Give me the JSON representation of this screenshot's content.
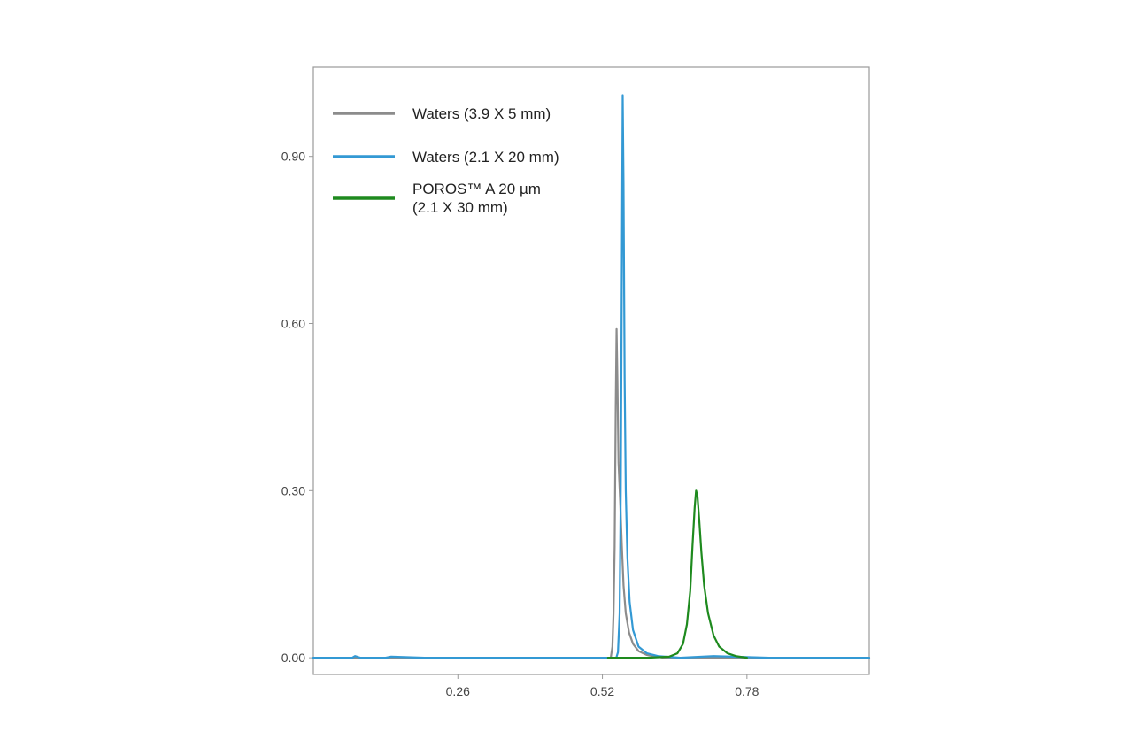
{
  "chart_data": {
    "type": "line",
    "title": "",
    "xlabel": "",
    "ylabel": "",
    "xlim": [
      0.0,
      1.0
    ],
    "ylim": [
      -0.03,
      1.06
    ],
    "x_ticks": [
      {
        "value": 0.26,
        "label": "0.26"
      },
      {
        "value": 0.52,
        "label": "0.52"
      },
      {
        "value": 0.78,
        "label": "0.78"
      }
    ],
    "y_ticks": [
      {
        "value": 0.0,
        "label": "0.00"
      },
      {
        "value": 0.3,
        "label": "0.30"
      },
      {
        "value": 0.6,
        "label": "0.60"
      },
      {
        "value": 0.9,
        "label": "0.90"
      }
    ],
    "grid": false,
    "legend_position": "top-left",
    "series": [
      {
        "name": "Waters (3.9 X 5 mm)",
        "color": "#8c8c8c",
        "points": [
          [
            0.0,
            0.0
          ],
          [
            0.52,
            0.0
          ],
          [
            0.535,
            0.0
          ],
          [
            0.538,
            0.02
          ],
          [
            0.54,
            0.08
          ],
          [
            0.542,
            0.2
          ],
          [
            0.544,
            0.45
          ],
          [
            0.5455,
            0.59
          ],
          [
            0.547,
            0.5
          ],
          [
            0.549,
            0.35
          ],
          [
            0.552,
            0.28
          ],
          [
            0.555,
            0.2
          ],
          [
            0.558,
            0.13
          ],
          [
            0.562,
            0.08
          ],
          [
            0.568,
            0.045
          ],
          [
            0.575,
            0.025
          ],
          [
            0.585,
            0.012
          ],
          [
            0.6,
            0.005
          ],
          [
            0.63,
            0.0
          ],
          [
            0.72,
            0.0
          ],
          [
            1.0,
            0.0
          ]
        ]
      },
      {
        "name": "Waters (2.1 X 20 mm)",
        "color": "#3399d4",
        "points": [
          [
            0.0,
            0.0
          ],
          [
            0.07,
            0.0
          ],
          [
            0.075,
            0.003
          ],
          [
            0.085,
            0.0
          ],
          [
            0.13,
            0.0
          ],
          [
            0.14,
            0.002
          ],
          [
            0.2,
            0.0
          ],
          [
            0.545,
            0.0
          ],
          [
            0.548,
            0.01
          ],
          [
            0.551,
            0.08
          ],
          [
            0.553,
            0.3
          ],
          [
            0.555,
            0.7
          ],
          [
            0.5565,
            1.01
          ],
          [
            0.558,
            0.85
          ],
          [
            0.56,
            0.5
          ],
          [
            0.562,
            0.3
          ],
          [
            0.565,
            0.18
          ],
          [
            0.569,
            0.1
          ],
          [
            0.575,
            0.05
          ],
          [
            0.585,
            0.02
          ],
          [
            0.6,
            0.008
          ],
          [
            0.62,
            0.003
          ],
          [
            0.66,
            0.0
          ],
          [
            0.72,
            0.003
          ],
          [
            0.82,
            0.0
          ],
          [
            1.0,
            0.0
          ]
        ]
      },
      {
        "name": "POROS™ A 20 µm (2.1 X 30 mm)",
        "label_lines": [
          "POROS™ A 20 µm",
          "(2.1 X 30 mm)"
        ],
        "color": "#1e8a1e",
        "points": [
          [
            0.53,
            0.0
          ],
          [
            0.6,
            0.0
          ],
          [
            0.64,
            0.002
          ],
          [
            0.655,
            0.008
          ],
          [
            0.665,
            0.025
          ],
          [
            0.672,
            0.06
          ],
          [
            0.678,
            0.12
          ],
          [
            0.682,
            0.2
          ],
          [
            0.686,
            0.27
          ],
          [
            0.6885,
            0.3
          ],
          [
            0.691,
            0.29
          ],
          [
            0.694,
            0.25
          ],
          [
            0.698,
            0.19
          ],
          [
            0.703,
            0.13
          ],
          [
            0.71,
            0.08
          ],
          [
            0.72,
            0.04
          ],
          [
            0.73,
            0.02
          ],
          [
            0.745,
            0.008
          ],
          [
            0.76,
            0.003
          ],
          [
            0.78,
            0.0
          ]
        ]
      }
    ]
  }
}
